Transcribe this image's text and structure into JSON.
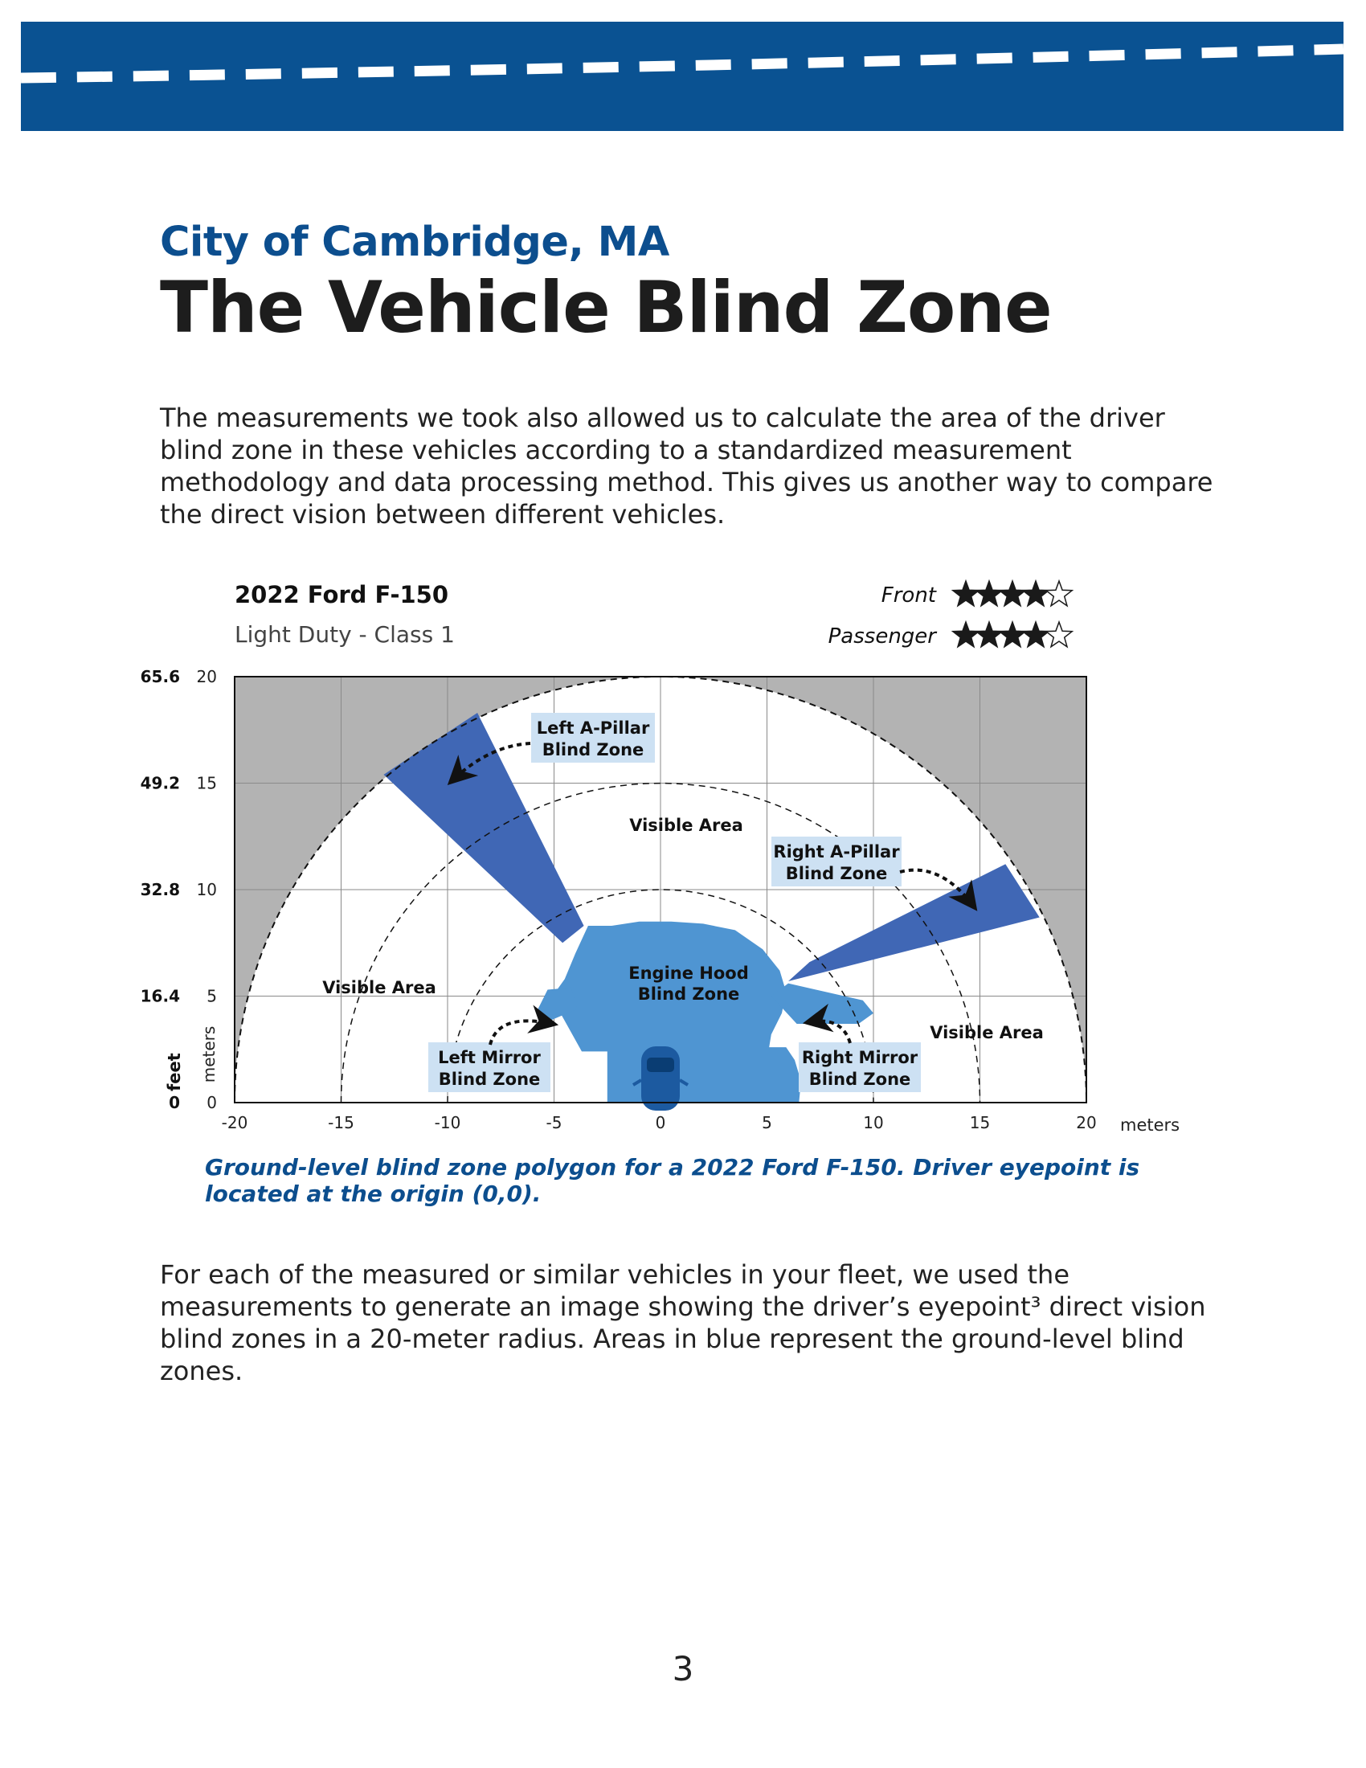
{
  "header": {
    "subtitle": "City of Cambridge, MA",
    "title": "The Vehicle Blind Zone"
  },
  "intro_text": "The measurements we took also allowed us to calculate the area of the driver blind zone in these vehicles according to a standardized measurement methodology and data processing method. This gives us another way to compare the direct vision between different vehicles.",
  "figure": {
    "vehicle_name": "2022 Ford F-150",
    "vehicle_class": "Light Duty - Class 1",
    "ratings": [
      {
        "label": "Front",
        "stars": 4,
        "max": 5
      },
      {
        "label": "Passenger",
        "stars": 4,
        "max": 5
      }
    ],
    "labels": {
      "left_a_pillar": [
        "Left A-Pillar",
        "Blind Zone"
      ],
      "right_a_pillar": [
        "Right A-Pillar",
        "Blind Zone"
      ],
      "engine_hood": [
        "Engine Hood",
        "Blind Zone"
      ],
      "left_mirror": [
        "Left Mirror",
        "Blind Zone"
      ],
      "right_mirror": [
        "Right Mirror",
        "Blind Zone"
      ],
      "visible_top": "Visible Area",
      "visible_left": "Visible Area",
      "visible_right": "Visible Area"
    },
    "colors": {
      "blind_zone": "#4f95d2",
      "a_pillar": "#4067b5",
      "obstructed": "#b3b3b3",
      "label_bg": "#cde1f3",
      "caption": "#0c4e8e",
      "vehicle": "#1c5aa0"
    }
  },
  "chart_data": {
    "type": "polygon-plot",
    "x_ticks": [
      "-20",
      "-15",
      "-10",
      "-5",
      "0",
      "5",
      "10",
      "15",
      "20"
    ],
    "y_ticks_meters": [
      "0",
      "5",
      "10",
      "15",
      "20"
    ],
    "y_ticks_feet": [
      "0",
      "16.4",
      "32.8",
      "49.2",
      "65.6"
    ],
    "xlabel": "meters",
    "ylabel_meters": "meters",
    "ylabel_feet": "feet",
    "xlim": [
      -20,
      20
    ],
    "ylim": [
      0,
      20
    ],
    "radius_circles_m": [
      10,
      15,
      20
    ],
    "engine_hood_polygon": [
      [
        -2.5,
        0
      ],
      [
        -2.5,
        2.4
      ],
      [
        -3.7,
        2.4
      ],
      [
        -4.7,
        4.2
      ],
      [
        -5,
        5.1
      ],
      [
        -4.5,
        5.8
      ],
      [
        -4,
        7
      ],
      [
        -3.4,
        8.3
      ],
      [
        -2.3,
        8.3
      ],
      [
        -1,
        8.5
      ],
      [
        0.5,
        8.5
      ],
      [
        2,
        8.4
      ],
      [
        3.5,
        8.1
      ],
      [
        4.8,
        7.2
      ],
      [
        5.6,
        6.2
      ],
      [
        5.9,
        5.2
      ],
      [
        5.7,
        4.2
      ],
      [
        5.2,
        3.2
      ],
      [
        5.1,
        2.6
      ],
      [
        5.9,
        2.6
      ],
      [
        6.3,
        2.0
      ],
      [
        6.6,
        1.0
      ],
      [
        6.5,
        0
      ]
    ],
    "left_mirror_polygon": [
      [
        -5.3,
        3.8
      ],
      [
        -5.8,
        4.3
      ],
      [
        -5.3,
        5.3
      ],
      [
        -4.2,
        5.4
      ],
      [
        -3.9,
        4.4
      ]
    ],
    "right_mirror_polygon": [
      [
        5.2,
        5.0
      ],
      [
        6.0,
        5.6
      ],
      [
        9.5,
        4.8
      ],
      [
        10,
        4.2
      ],
      [
        9.3,
        3.7
      ],
      [
        6.4,
        3.7
      ]
    ],
    "left_a_pillar_polygon": [
      [
        -4.6,
        7.5
      ],
      [
        -3.6,
        8.3
      ],
      [
        -8.6,
        18.3
      ],
      [
        -13.0,
        15.4
      ]
    ],
    "right_a_pillar_polygon": [
      [
        6.0,
        5.7
      ],
      [
        7.0,
        6.6
      ],
      [
        16.2,
        11.2
      ],
      [
        17.8,
        8.7
      ]
    ]
  },
  "caption": "Ground-level blind zone polygon for a 2022 Ford F-150. Driver eyepoint is located at the origin (0,0).",
  "outro_text": "For each of the measured or similar vehicles in your fleet, we used the measurements to generate an image showing the driver’s eyepoint³ direct vision blind zones in a 20-meter radius. Areas in blue represent the ground-level blind zones.",
  "page_number": "3"
}
